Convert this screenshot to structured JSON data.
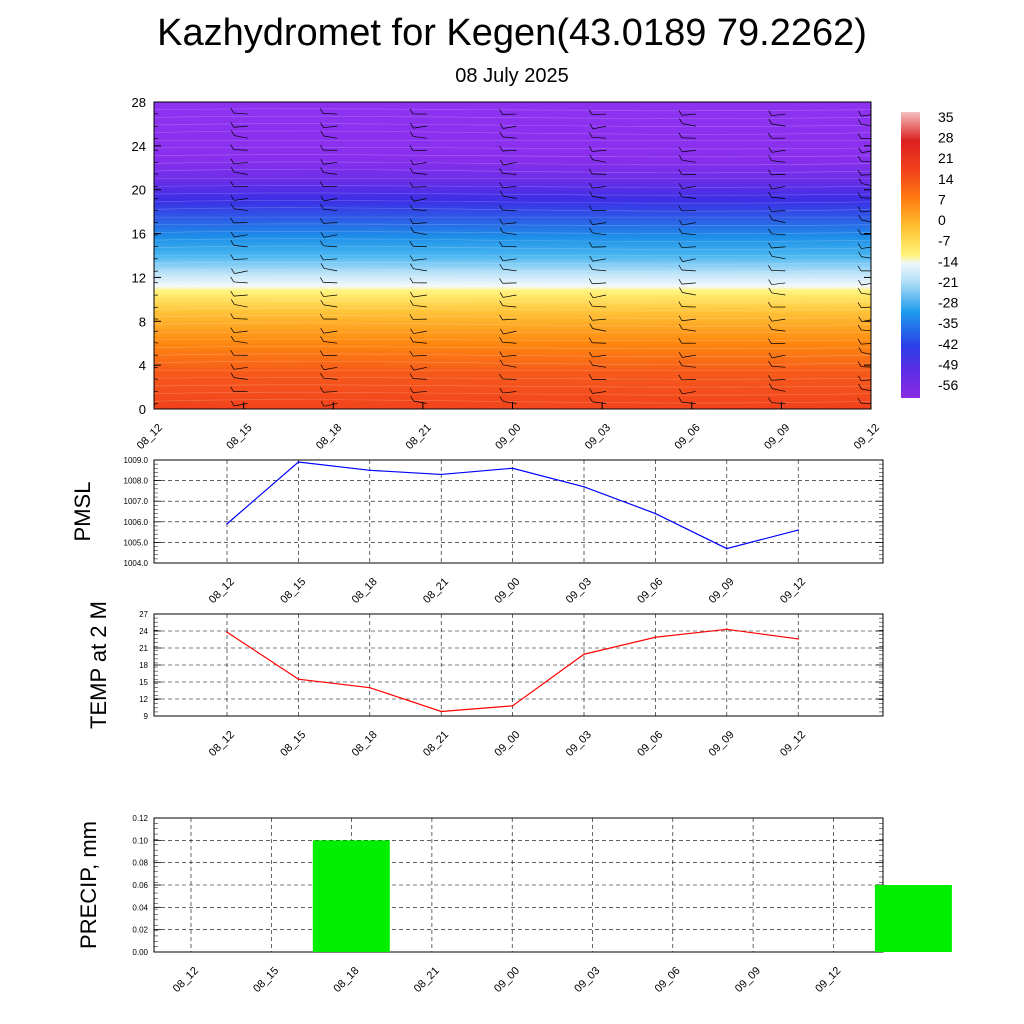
{
  "header": {
    "title": "Kazhydromet for Kegen(43.0189 79.2262)",
    "date": "08 July 2025"
  },
  "chart_data": [
    {
      "type": "heatmap",
      "title": "",
      "x_ticks": [
        "08_12",
        "08_15",
        "08_18",
        "08_21",
        "09_00",
        "09_03",
        "09_06",
        "09_09",
        "09_12"
      ],
      "y_ticks": [
        "0",
        "4",
        "8",
        "12",
        "16",
        "20",
        "24",
        "28"
      ],
      "ylim": [
        0,
        28
      ],
      "colorbar_labels": [
        "35",
        "28",
        "21",
        "14",
        "7",
        "0",
        "-7",
        "-14",
        "-21",
        "-28",
        "-35",
        "-42",
        "-49",
        "-56"
      ],
      "wind_barbs": true,
      "colors": {
        "deep_violet": "#8a2be2",
        "blue": "#3a3ae6",
        "sky": "#25a5ee",
        "pale": "#dceefa",
        "yellow": "#fff26a",
        "orange": "#ff9a00",
        "red": "#f0451c"
      }
    },
    {
      "type": "line",
      "ylabel": "PMSL",
      "x": [
        "08_12",
        "08_15",
        "08_18",
        "08_21",
        "09_00",
        "09_03",
        "09_06",
        "09_09",
        "09_12"
      ],
      "values": [
        1005.9,
        1008.9,
        1008.5,
        1008.3,
        1008.6,
        1007.7,
        1006.4,
        1004.7,
        1005.6
      ],
      "ylim": [
        1004.0,
        1009.0
      ],
      "y_ticks": [
        "1004.0",
        "1005.0",
        "1006.0",
        "1007.0",
        "1008.0",
        "1009.0"
      ],
      "color": "#0000ff",
      "grid": true
    },
    {
      "type": "line",
      "ylabel": "TEMP at 2 M",
      "x": [
        "08_12",
        "08_15",
        "08_18",
        "08_21",
        "09_00",
        "09_03",
        "09_06",
        "09_09",
        "09_12"
      ],
      "values": [
        23.8,
        15.5,
        14.0,
        9.8,
        10.8,
        19.9,
        22.9,
        24.3,
        22.6
      ],
      "ylim": [
        9,
        27
      ],
      "y_ticks": [
        "9",
        "12",
        "15",
        "18",
        "21",
        "24",
        "27"
      ],
      "color": "#ff0000",
      "grid": true
    },
    {
      "type": "bar",
      "ylabel": "PRECIP, mm",
      "categories": [
        "08_12",
        "08_15",
        "08_18",
        "08_21",
        "09_00",
        "09_03",
        "09_06",
        "09_09",
        "09_12"
      ],
      "values": [
        0,
        0.1,
        0,
        0,
        0,
        0,
        0,
        0,
        0.06
      ],
      "ylim": [
        0,
        0.12
      ],
      "y_ticks": [
        "0.00",
        "0.02",
        "0.04",
        "0.06",
        "0.08",
        "0.10",
        "0.12"
      ],
      "color": "#00ee00",
      "grid": true
    }
  ]
}
